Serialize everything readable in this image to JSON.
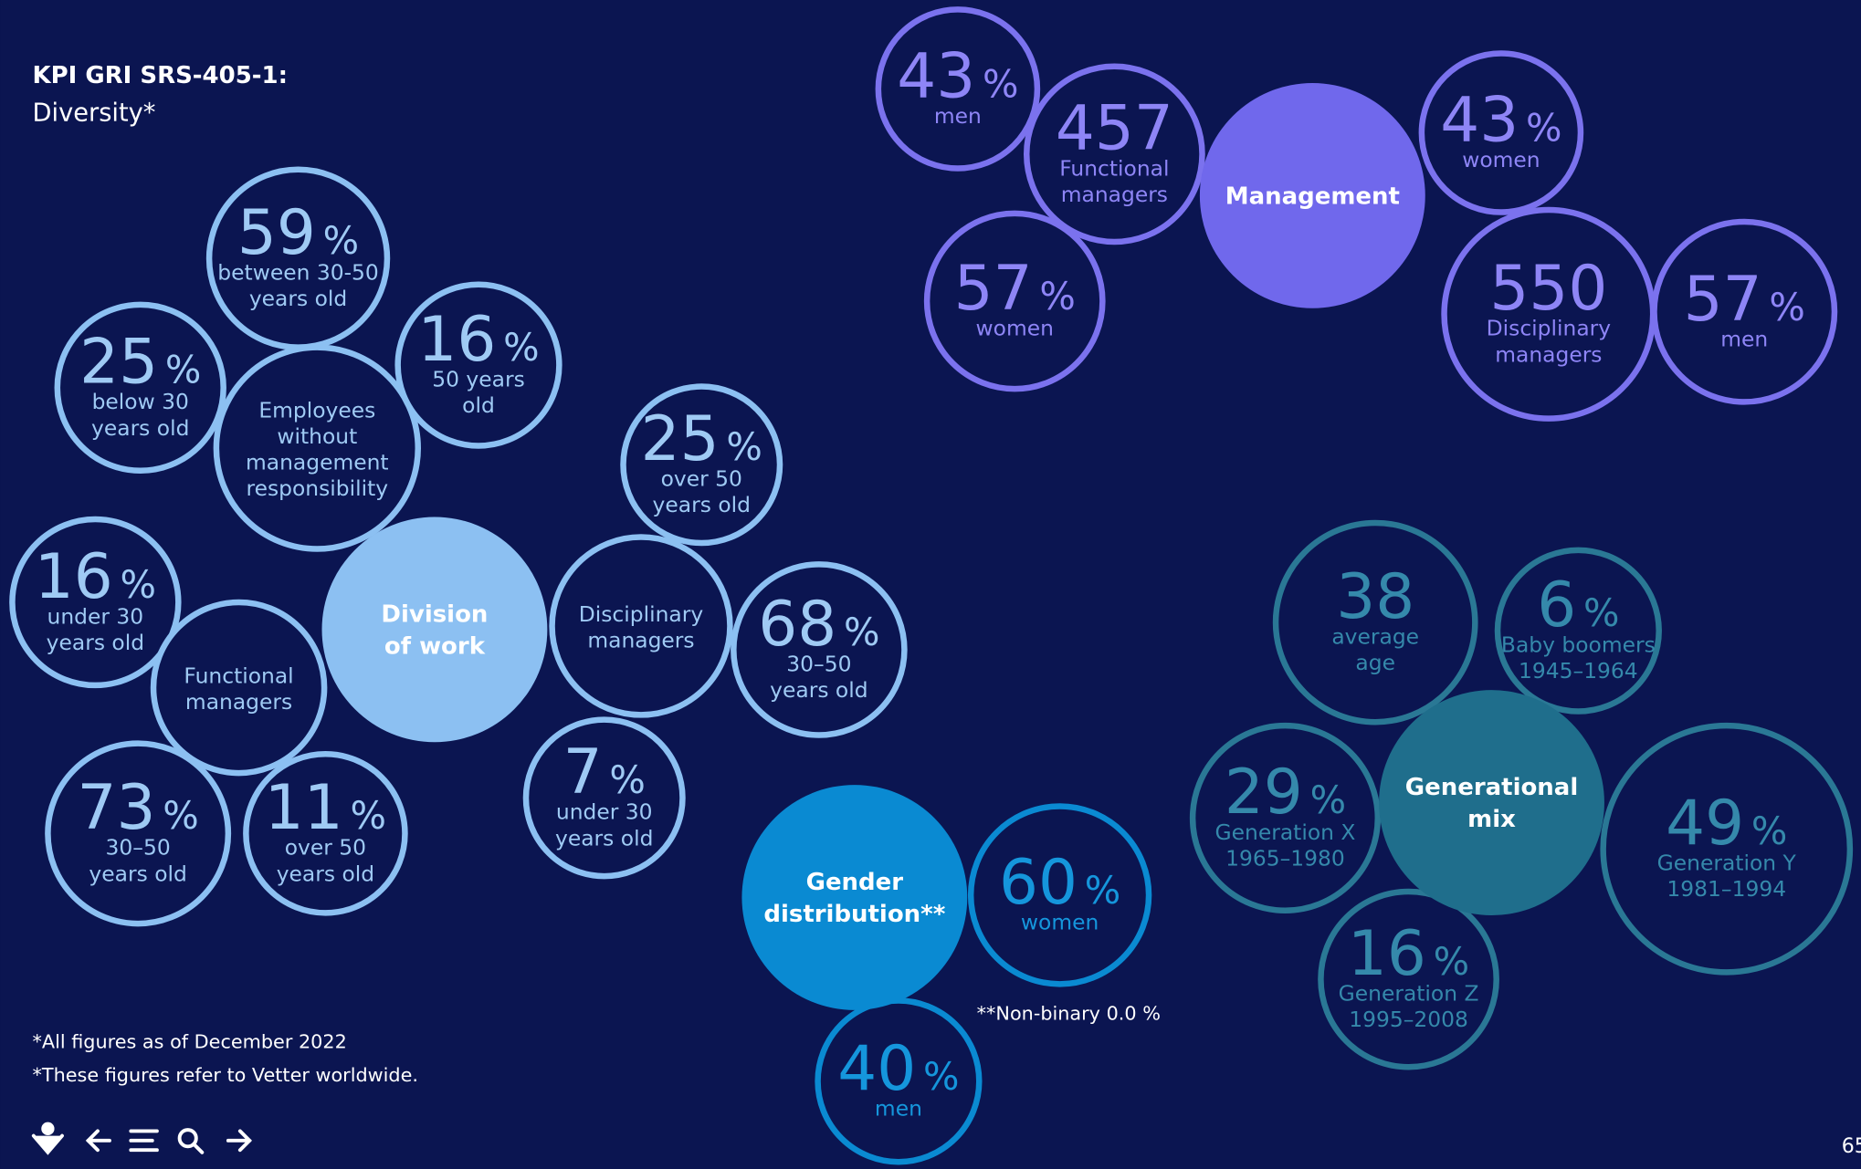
{
  "header": {
    "kpi": "KPI GRI SRS-405-1:",
    "title": "Diversity*"
  },
  "groups": [
    {
      "hub": [
        "Division",
        "of work"
      ],
      "bubbles": [
        {
          "value": "59",
          "unit": "%",
          "label": [
            "between 30-50",
            "years old"
          ]
        },
        {
          "value": "25",
          "unit": "%",
          "label": [
            "below 30",
            "years old"
          ]
        },
        {
          "label": [
            "Employees",
            "without",
            "management",
            "responsibility"
          ]
        },
        {
          "value": "16",
          "unit": "%",
          "label": [
            "50 years",
            "old"
          ]
        },
        {
          "label": [
            "Disciplinary",
            "managers"
          ]
        },
        {
          "value": "25",
          "unit": "%",
          "label": [
            "over 50",
            "years old"
          ]
        },
        {
          "value": "68",
          "unit": "%",
          "label": [
            "30–50",
            "years old"
          ]
        },
        {
          "value": "7",
          "unit": "%",
          "label": [
            "under 30",
            "years old"
          ]
        },
        {
          "value": "16",
          "unit": "%",
          "label": [
            "under 30",
            "years old"
          ]
        },
        {
          "label": [
            "Functional",
            "managers"
          ]
        },
        {
          "value": "73",
          "unit": "%",
          "label": [
            "30–50",
            "years old"
          ]
        },
        {
          "value": "11",
          "unit": "%",
          "label": [
            "over 50",
            "years old"
          ]
        }
      ]
    },
    {
      "hub": [
        "Management"
      ],
      "bubbles": [
        {
          "value": "43",
          "unit": "%",
          "label": [
            "men"
          ]
        },
        {
          "value": "457",
          "label": [
            "Functional",
            "managers"
          ]
        },
        {
          "value": "57",
          "unit": "%",
          "label": [
            "women"
          ]
        },
        {
          "value": "43",
          "unit": "%",
          "label": [
            "women"
          ]
        },
        {
          "value": "550",
          "label": [
            "Disciplinary",
            "managers"
          ]
        },
        {
          "value": "57",
          "unit": "%",
          "label": [
            "men"
          ]
        }
      ]
    },
    {
      "hub": [
        "Gender",
        "distribution**"
      ],
      "bubbles": [
        {
          "value": "60",
          "unit": "%",
          "label": [
            "women"
          ]
        },
        {
          "value": "40",
          "unit": "%",
          "label": [
            "men"
          ]
        }
      ],
      "note": "**Non-binary 0.0 %"
    },
    {
      "hub": [
        "Generational",
        "mix"
      ],
      "bubbles": [
        {
          "value": "38",
          "label": [
            "average",
            "age"
          ]
        },
        {
          "value": "6",
          "unit": "%",
          "label": [
            "Baby boomers",
            "1945–1964"
          ]
        },
        {
          "value": "29",
          "unit": "%",
          "label": [
            "Generation X",
            "1965–1980"
          ]
        },
        {
          "value": "49",
          "unit": "%",
          "label": [
            "Generation Y",
            "1981–1994"
          ]
        },
        {
          "value": "16",
          "unit": "%",
          "label": [
            "Generation Z",
            "1995–2008"
          ]
        }
      ]
    }
  ],
  "footnotes": [
    "*All figures as of December 2022",
    "*These figures refer to Vetter worldwide."
  ],
  "page_number": "65"
}
